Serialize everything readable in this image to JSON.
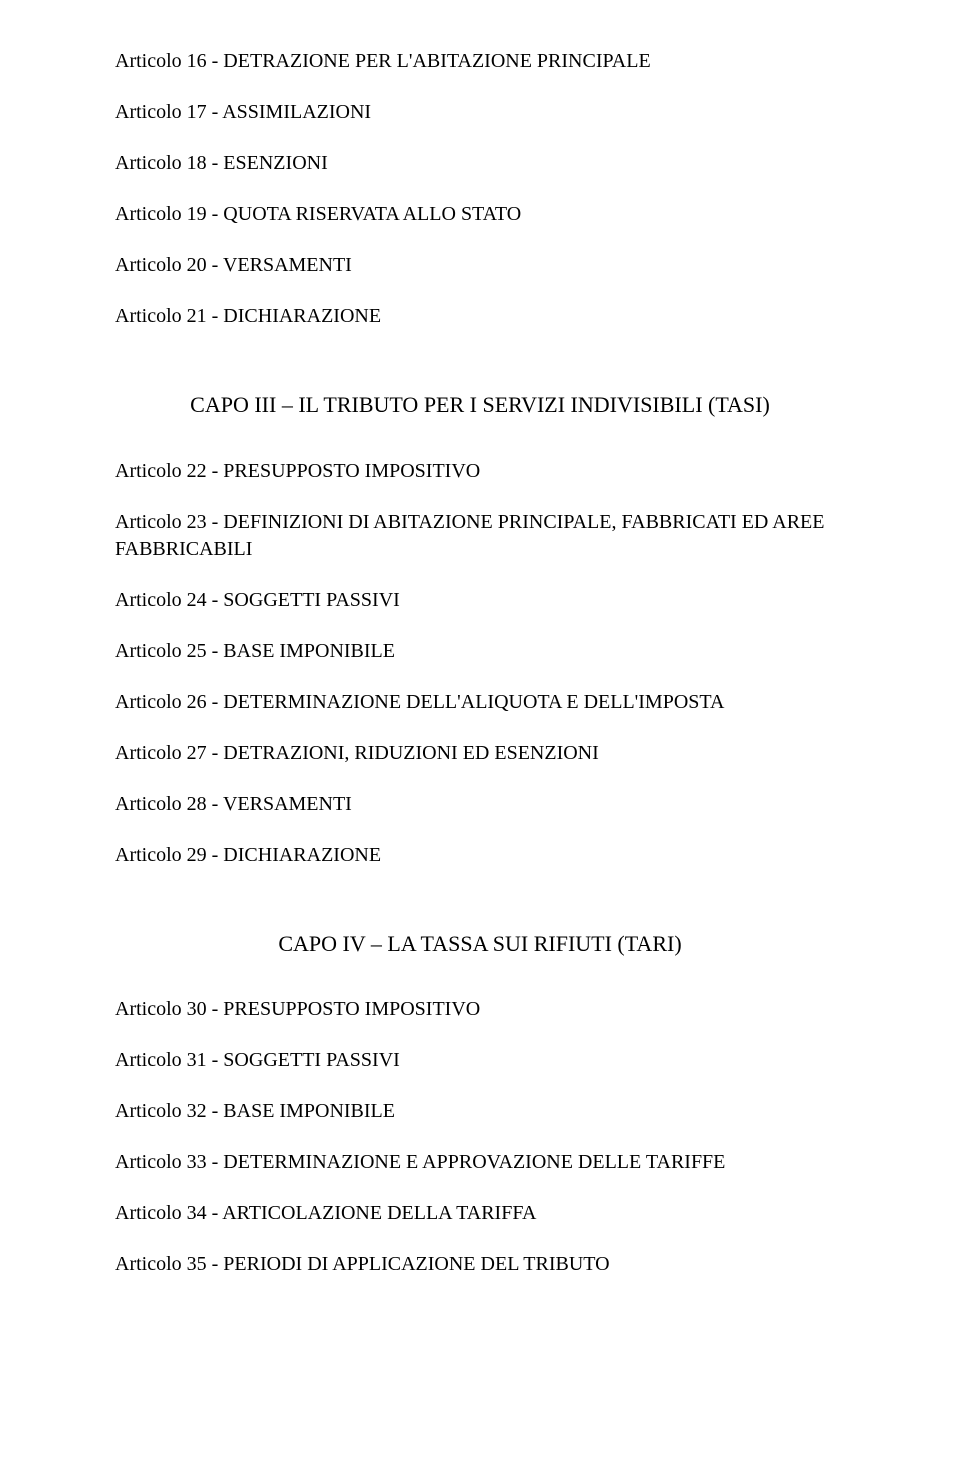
{
  "group1": {
    "items": [
      "Articolo 16 - DETRAZIONE PER L'ABITAZIONE PRINCIPALE",
      "Articolo 17 - ASSIMILAZIONI",
      "Articolo 18 - ESENZIONI",
      "Articolo 19 - QUOTA RISERVATA ALLO STATO",
      "Articolo 20 - VERSAMENTI",
      "Articolo 21 - DICHIARAZIONE"
    ]
  },
  "section2_title": "CAPO III – IL TRIBUTO PER I SERVIZI INDIVISIBILI (TASI)",
  "group2": {
    "items": [
      "Articolo 22 - PRESUPPOSTO IMPOSITIVO",
      "Articolo 23 - DEFINIZIONI DI ABITAZIONE PRINCIPALE, FABBRICATI ED AREE FABBRICABILI",
      "Articolo 24 - SOGGETTI PASSIVI",
      "Articolo 25 - BASE IMPONIBILE",
      "Articolo 26 - DETERMINAZIONE DELL'ALIQUOTA E DELL'IMPOSTA",
      "Articolo 27 - DETRAZIONI, RIDUZIONI ED ESENZIONI",
      "Articolo 28 - VERSAMENTI",
      "Articolo 29 - DICHIARAZIONE"
    ]
  },
  "section3_title": "CAPO IV – LA TASSA SUI RIFIUTI (TARI)",
  "group3": {
    "items": [
      "Articolo 30 - PRESUPPOSTO IMPOSITIVO",
      "Articolo 31 - SOGGETTI PASSIVI",
      "Articolo 32 - BASE IMPONIBILE",
      "Articolo 33 - DETERMINAZIONE E APPROVAZIONE DELLE TARIFFE",
      "Articolo 34 - ARTICOLAZIONE DELLA TARIFFA",
      "Articolo 35 - PERIODI DI APPLICAZIONE DEL TRIBUTO"
    ]
  }
}
